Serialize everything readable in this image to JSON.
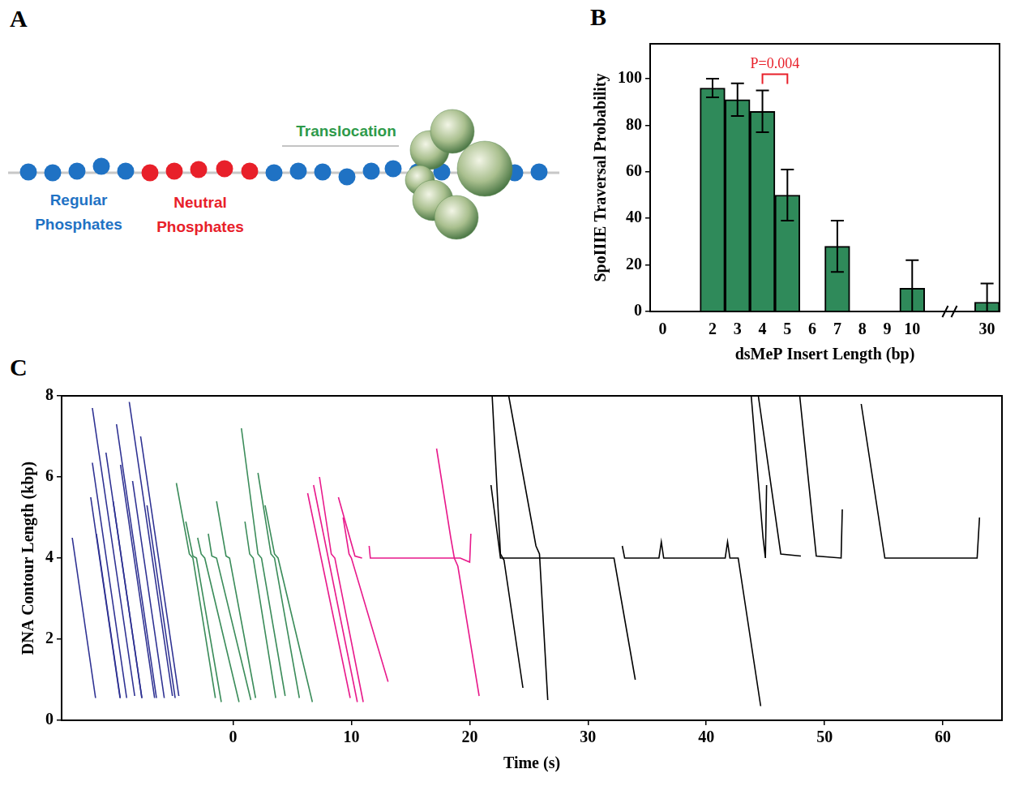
{
  "diagram": {
    "panel": "A",
    "labels": {
      "regular": "Regular Phosphates",
      "neutral": "Neutral Phosphates",
      "translocation": "Translocation"
    }
  },
  "chart_data": [
    {
      "panel": "B",
      "type": "bar",
      "categories": [
        "0",
        null,
        "2",
        "3",
        "4",
        "5",
        "6",
        "7",
        "8",
        "9",
        "10",
        null,
        null,
        "30"
      ],
      "values": [
        null,
        null,
        96,
        91,
        86,
        50,
        null,
        28,
        null,
        null,
        10,
        null,
        null,
        4
      ],
      "errors": [
        null,
        null,
        4,
        7,
        9,
        11,
        null,
        11,
        null,
        null,
        12,
        null,
        null,
        8
      ],
      "color": "#2f8a5a",
      "x_label": "dsMeP Insert Length (bp)",
      "y_label": "SpoIIIE Traversal Probability",
      "ylim": [
        0,
        115
      ],
      "yticks": [
        0,
        20,
        40,
        60,
        80,
        100
      ],
      "grid": false,
      "annotations": [
        {
          "text": "P=0.004",
          "from": "4",
          "to": "5",
          "color": "#e8202a"
        }
      ]
    },
    {
      "panel": "C",
      "type": "line",
      "x_label": "Time (s)",
      "y_label": "DNA Contour Length (kbp)",
      "xlim": [
        -14.5,
        65
      ],
      "xticks": [
        0,
        10,
        20,
        30,
        40,
        50,
        60
      ],
      "ylim": [
        0,
        8
      ],
      "yticks": [
        0,
        2,
        4,
        6,
        8
      ],
      "grid": false,
      "series": [
        {
          "color": "#2e3192",
          "x": [
            -13.6,
            -11.63
          ],
          "values": [
            4.5,
            0.55
          ]
        },
        {
          "color": "#2e3192",
          "x": [
            -11.9,
            -8.32
          ],
          "values": [
            7.7,
            0.6
          ]
        },
        {
          "color": "#2e3192",
          "x": [
            -11.9,
            -9.0
          ],
          "values": [
            6.35,
            0.55
          ]
        },
        {
          "color": "#2e3192",
          "x": [
            -12.04,
            -9.56
          ],
          "values": [
            5.5,
            0.55
          ]
        },
        {
          "color": "#2e3192",
          "x": [
            -11.56,
            -9.54
          ],
          "values": [
            4.6,
            0.55
          ]
        },
        {
          "color": "#2e3192",
          "x": [
            -10.75,
            -7.72
          ],
          "values": [
            6.6,
            0.55
          ]
        },
        {
          "color": "#2e3192",
          "x": [
            -10.14,
            -7.71
          ],
          "values": [
            5.4,
            0.55
          ]
        },
        {
          "color": "#2e3192",
          "x": [
            -9.86,
            -6.48
          ],
          "values": [
            7.3,
            0.55
          ]
        },
        {
          "color": "#2e3192",
          "x": [
            -9.52,
            -6.64
          ],
          "values": [
            6.3,
            0.55
          ]
        },
        {
          "color": "#2e3192",
          "x": [
            -8.78,
            -5.13
          ],
          "values": [
            7.85,
            0.6
          ]
        },
        {
          "color": "#2e3192",
          "x": [
            -8.5,
            -5.82
          ],
          "values": [
            5.9,
            0.55
          ]
        },
        {
          "color": "#2e3192",
          "x": [
            -7.82,
            -4.59
          ],
          "values": [
            7.0,
            0.6
          ]
        },
        {
          "color": "#2e3192",
          "x": [
            -7.28,
            -4.9
          ],
          "values": [
            5.3,
            0.55
          ]
        },
        {
          "color": "#3b8c5a",
          "x": [
            -4.8,
            -3.7,
            -3.4,
            -1.5
          ],
          "values": [
            5.85,
            4.1,
            4.0,
            0.55
          ]
        },
        {
          "color": "#3b8c5a",
          "x": [
            -4.0,
            -3.4,
            -3.1,
            -1.0
          ],
          "values": [
            4.9,
            4.05,
            4.0,
            0.45
          ]
        },
        {
          "color": "#3b8c5a",
          "x": [
            -3.0,
            -2.7,
            -2.4,
            0.5
          ],
          "values": [
            4.5,
            4.1,
            4.0,
            0.45
          ]
        },
        {
          "color": "#3b8c5a",
          "x": [
            -2.1,
            -1.8,
            -1.4,
            1.5
          ],
          "values": [
            4.6,
            4.05,
            4.0,
            0.5
          ]
        },
        {
          "color": "#3b8c5a",
          "x": [
            -1.4,
            -0.6,
            -0.3,
            1.9
          ],
          "values": [
            5.4,
            4.05,
            4.0,
            0.55
          ]
        },
        {
          "color": "#3b8c5a",
          "x": [
            0.7,
            2.1,
            2.4,
            4.4
          ],
          "values": [
            7.2,
            4.1,
            4.0,
            0.6
          ]
        },
        {
          "color": "#3b8c5a",
          "x": [
            1.0,
            1.4,
            1.7,
            3.6
          ],
          "values": [
            4.9,
            4.1,
            4.0,
            0.55
          ]
        },
        {
          "color": "#3b8c5a",
          "x": [
            2.1,
            3.2,
            3.5,
            5.6
          ],
          "values": [
            6.1,
            4.1,
            4.0,
            0.55
          ]
        },
        {
          "color": "#3b8c5a",
          "x": [
            2.7,
            3.5,
            3.8,
            6.7
          ],
          "values": [
            5.3,
            4.1,
            4.0,
            0.45
          ]
        },
        {
          "color": "#e8198b",
          "x": [
            6.3,
            9.9
          ],
          "values": [
            5.6,
            0.55
          ]
        },
        {
          "color": "#e8198b",
          "x": [
            6.8,
            10.5
          ],
          "values": [
            5.8,
            0.45
          ]
        },
        {
          "color": "#e8198b",
          "x": [
            7.3,
            8.3,
            8.6,
            11.0
          ],
          "values": [
            6.0,
            4.1,
            4.0,
            0.45
          ]
        },
        {
          "color": "#e8198b",
          "x": [
            9.3,
            9.8,
            10.0,
            13.1
          ],
          "values": [
            5.0,
            4.1,
            4.0,
            0.95
          ]
        },
        {
          "color": "#e8198b",
          "x": [
            8.9,
            10.3,
            10.9
          ],
          "values": [
            5.5,
            4.05,
            4.0
          ]
        },
        {
          "color": "#e8198b",
          "x": [
            11.5,
            11.6,
            19.2,
            20.0,
            20.1
          ],
          "values": [
            4.3,
            4.0,
            4.0,
            3.9,
            4.6
          ]
        },
        {
          "color": "#e8198b",
          "x": [
            17.2,
            18.4,
            18.7,
            19.0,
            20.8
          ],
          "values": [
            6.7,
            4.5,
            4.0,
            3.8,
            0.6
          ]
        },
        {
          "color": "#000000",
          "x": [
            21.9,
            22.6,
            22.9,
            24.5
          ],
          "values": [
            8.0,
            4.1,
            3.95,
            0.8
          ]
        },
        {
          "color": "#000000",
          "x": [
            21.8,
            22.6,
            32.2,
            34.0
          ],
          "values": [
            5.8,
            4.0,
            4.0,
            1.0
          ]
        },
        {
          "color": "#000000",
          "x": [
            23.3,
            25.6,
            25.9,
            26.6
          ],
          "values": [
            8.0,
            4.3,
            4.1,
            0.5
          ]
        },
        {
          "color": "#000000",
          "x": [
            32.9,
            33.1,
            36.0,
            36.2,
            36.4,
            41.6,
            41.8,
            42.0,
            42.7,
            44.6
          ],
          "values": [
            4.3,
            4.0,
            4.0,
            4.4,
            4.0,
            4.0,
            4.4,
            4.0,
            4.0,
            0.35
          ]
        },
        {
          "color": "#000000",
          "x": [
            43.8,
            44.8,
            45.0,
            45.1
          ],
          "values": [
            8.0,
            4.5,
            4.0,
            5.8
          ]
        },
        {
          "color": "#000000",
          "x": [
            44.4,
            46.3,
            48.0
          ],
          "values": [
            8.0,
            4.1,
            4.05
          ]
        },
        {
          "color": "#000000",
          "x": [
            47.9,
            49.3,
            51.4,
            51.5
          ],
          "values": [
            8.0,
            4.05,
            4.0,
            5.2
          ]
        },
        {
          "color": "#000000",
          "x": [
            53.1,
            55.1,
            62.9,
            63.1
          ],
          "values": [
            7.8,
            4.0,
            4.0,
            5.0
          ]
        }
      ]
    }
  ]
}
